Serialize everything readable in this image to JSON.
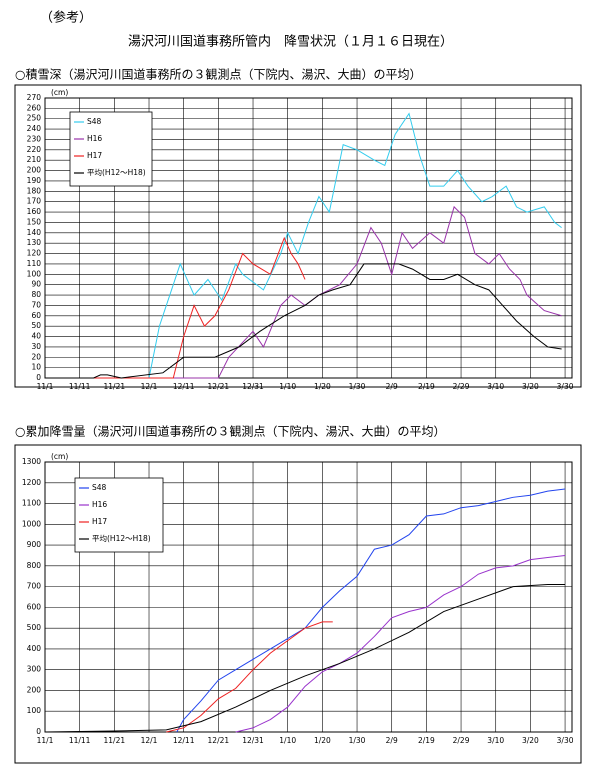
{
  "note": "（参考）",
  "title": "湯沢河川国道事務所管内　降雪状況（１月１６日現在）",
  "chart_data": [
    {
      "type": "line",
      "title": "○積雪深（湯沢河川国道事務所の３観測点（下院内、湯沢、大曲）の平均）",
      "ylabel": "(cm)",
      "xlim": [
        0,
        152
      ],
      "ylim": [
        0,
        270
      ],
      "xticks": [
        {
          "value": 0,
          "label": "11/1"
        },
        {
          "value": 10,
          "label": "11/11"
        },
        {
          "value": 20,
          "label": "11/21"
        },
        {
          "value": 30,
          "label": "12/1"
        },
        {
          "value": 40,
          "label": "12/11"
        },
        {
          "value": 50,
          "label": "12/21"
        },
        {
          "value": 60,
          "label": "12/31"
        },
        {
          "value": 70,
          "label": "1/10"
        },
        {
          "value": 80,
          "label": "1/20"
        },
        {
          "value": 90,
          "label": "1/30"
        },
        {
          "value": 100,
          "label": "2/9"
        },
        {
          "value": 110,
          "label": "2/19"
        },
        {
          "value": 120,
          "label": "2/29"
        },
        {
          "value": 130,
          "label": "3/10"
        },
        {
          "value": 140,
          "label": "3/20"
        },
        {
          "value": 150,
          "label": "3/30"
        }
      ],
      "yticks": [
        0,
        10,
        20,
        30,
        40,
        50,
        60,
        70,
        80,
        90,
        100,
        110,
        120,
        130,
        140,
        150,
        160,
        170,
        180,
        190,
        200,
        210,
        220,
        230,
        240,
        250,
        260,
        270
      ],
      "grid": true,
      "legend": "upper left",
      "series": [
        {
          "name": "S48",
          "color": "#33ccee",
          "x": [
            0,
            30,
            33,
            39,
            43,
            47,
            51,
            55,
            57,
            63,
            68,
            70,
            73,
            76,
            79,
            82,
            86,
            90,
            95,
            98,
            101,
            105,
            108,
            111,
            115,
            119,
            122,
            126,
            129,
            133,
            136,
            139,
            144,
            147,
            149
          ],
          "values": [
            0,
            0,
            50,
            110,
            80,
            95,
            75,
            110,
            100,
            85,
            120,
            140,
            120,
            150,
            175,
            160,
            225,
            220,
            210,
            205,
            235,
            255,
            215,
            185,
            185,
            200,
            185,
            170,
            175,
            185,
            165,
            160,
            165,
            150,
            145
          ]
        },
        {
          "name": "H16",
          "color": "#9933aa",
          "x": [
            0,
            50,
            53,
            60,
            63,
            68,
            71,
            75,
            79,
            85,
            90,
            94,
            97,
            100,
            103,
            106,
            111,
            115,
            118,
            121,
            124,
            128,
            131,
            134,
            137,
            139,
            144,
            149
          ],
          "values": [
            0,
            0,
            20,
            45,
            30,
            70,
            80,
            70,
            80,
            90,
            110,
            145,
            130,
            100,
            140,
            125,
            140,
            130,
            165,
            155,
            120,
            110,
            120,
            105,
            95,
            80,
            65,
            60
          ]
        },
        {
          "name": "H17",
          "color": "#ee2222",
          "x": [
            0,
            37,
            40,
            43,
            46,
            49,
            53,
            57,
            60,
            65,
            69,
            71,
            73,
            75
          ],
          "values": [
            0,
            0,
            40,
            70,
            50,
            60,
            85,
            120,
            110,
            100,
            135,
            120,
            110,
            95
          ]
        },
        {
          "name": "平均(H12～H18)",
          "color": "#000000",
          "x": [
            0,
            14,
            16,
            18,
            22,
            34,
            40,
            49,
            56,
            62,
            69,
            75,
            79,
            83,
            88,
            92,
            98,
            102,
            106,
            111,
            115,
            119,
            124,
            128,
            132,
            136,
            141,
            145,
            149
          ],
          "values": [
            0,
            0,
            3,
            3,
            0,
            5,
            20,
            20,
            30,
            45,
            60,
            70,
            80,
            85,
            90,
            110,
            110,
            110,
            105,
            95,
            95,
            100,
            90,
            85,
            70,
            55,
            40,
            30,
            28
          ]
        }
      ]
    },
    {
      "type": "line",
      "title": "○累加降雪量（湯沢河川国道事務所の３観測点（下院内、湯沢、大曲）の平均）",
      "ylabel": "(cm)",
      "xlim": [
        0,
        152
      ],
      "ylim": [
        0,
        1300
      ],
      "xticks": [
        {
          "value": 0,
          "label": "11/1"
        },
        {
          "value": 10,
          "label": "11/11"
        },
        {
          "value": 20,
          "label": "11/21"
        },
        {
          "value": 30,
          "label": "12/1"
        },
        {
          "value": 40,
          "label": "12/11"
        },
        {
          "value": 50,
          "label": "12/21"
        },
        {
          "value": 60,
          "label": "12/31"
        },
        {
          "value": 70,
          "label": "1/10"
        },
        {
          "value": 80,
          "label": "1/20"
        },
        {
          "value": 90,
          "label": "1/30"
        },
        {
          "value": 100,
          "label": "2/9"
        },
        {
          "value": 110,
          "label": "2/19"
        },
        {
          "value": 120,
          "label": "2/29"
        },
        {
          "value": 130,
          "label": "3/10"
        },
        {
          "value": 140,
          "label": "3/20"
        },
        {
          "value": 150,
          "label": "3/30"
        }
      ],
      "yticks": [
        0,
        100,
        200,
        300,
        400,
        500,
        600,
        700,
        800,
        900,
        1000,
        1100,
        1200,
        1300
      ],
      "grid": true,
      "legend": "upper left",
      "series": [
        {
          "name": "S48",
          "color": "#2244ee",
          "x": [
            38,
            40,
            45,
            50,
            55,
            60,
            65,
            70,
            75,
            80,
            85,
            90,
            95,
            100,
            105,
            110,
            115,
            120,
            125,
            130,
            135,
            140,
            145,
            150
          ],
          "values": [
            0,
            60,
            150,
            250,
            300,
            350,
            400,
            450,
            500,
            600,
            680,
            750,
            880,
            900,
            950,
            1040,
            1050,
            1080,
            1090,
            1110,
            1130,
            1140,
            1160,
            1170
          ]
        },
        {
          "name": "H16",
          "color": "#9933cc",
          "x": [
            55,
            60,
            65,
            70,
            75,
            80,
            85,
            90,
            95,
            100,
            105,
            110,
            115,
            120,
            125,
            130,
            135,
            140,
            145,
            150
          ],
          "values": [
            0,
            20,
            60,
            120,
            220,
            290,
            330,
            380,
            460,
            550,
            580,
            600,
            660,
            700,
            760,
            790,
            800,
            830,
            840,
            850
          ]
        },
        {
          "name": "H17",
          "color": "#ee2222",
          "x": [
            35,
            40,
            45,
            50,
            55,
            60,
            65,
            70,
            75,
            80,
            83
          ],
          "values": [
            0,
            20,
            80,
            160,
            210,
            300,
            380,
            440,
            500,
            530,
            530
          ]
        },
        {
          "name": "平均(H12～H18)",
          "color": "#000000",
          "x": [
            0,
            20,
            35,
            45,
            55,
            65,
            75,
            85,
            95,
            105,
            115,
            125,
            135,
            145,
            150
          ],
          "values": [
            0,
            5,
            10,
            50,
            120,
            200,
            270,
            330,
            400,
            480,
            580,
            640,
            700,
            710,
            710
          ]
        }
      ]
    }
  ]
}
